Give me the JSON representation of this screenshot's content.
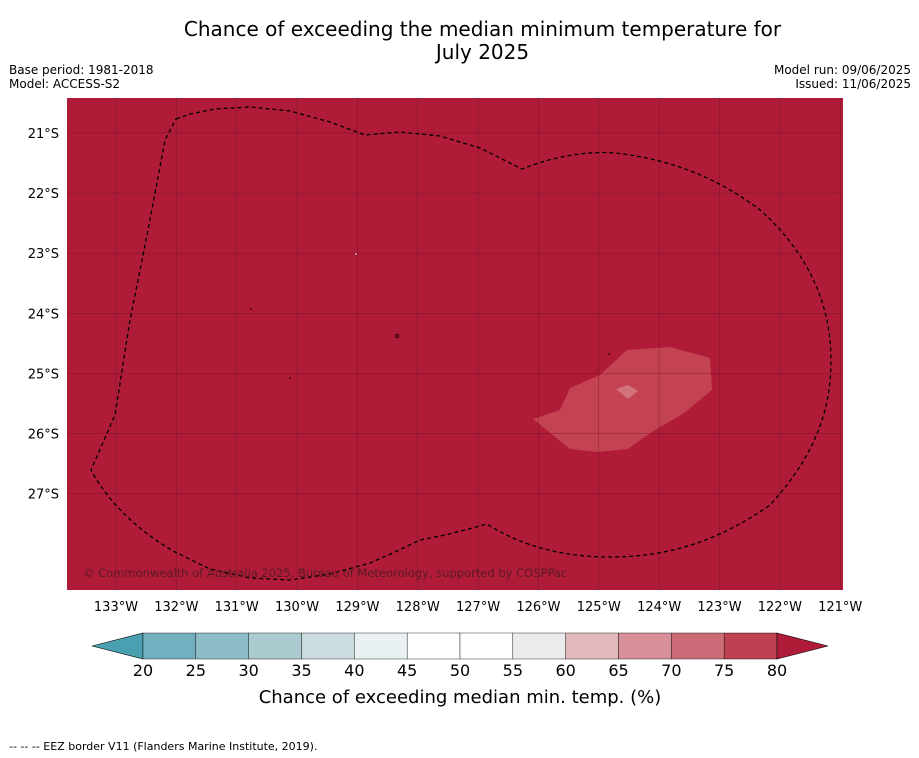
{
  "title": {
    "line1": "Chance of exceeding the median minimum temperature for",
    "line2": "July 2025"
  },
  "meta": {
    "base_period": "Base period: 1981-2018",
    "model": "Model: ACCESS-S2",
    "model_run": "Model run: 09/06/2025",
    "issued": "Issued: 11/06/2025"
  },
  "map": {
    "background_color": "#b01c38",
    "patch_outer_color": "#c44352",
    "patch_inner_color": "#d2727d",
    "lon_ticks": [
      "133°W",
      "132°W",
      "131°W",
      "130°W",
      "129°W",
      "128°W",
      "127°W",
      "126°W",
      "125°W",
      "124°W",
      "123°W",
      "122°W",
      "121°W"
    ],
    "lat_ticks": [
      "21°S",
      "22°S",
      "23°S",
      "24°S",
      "25°S",
      "26°S",
      "27°S"
    ],
    "copyright": "© Commonwealth of Australia 2025, Bureau of Meteorology, supported by COSPPac"
  },
  "colorbar": {
    "ticks": [
      "20",
      "25",
      "30",
      "35",
      "40",
      "45",
      "50",
      "55",
      "60",
      "65",
      "70",
      "75",
      "80"
    ],
    "colors": [
      "#72afbf",
      "#8ebcc8",
      "#abcbd1",
      "#cadce0",
      "#eaf1f3",
      "#ffffff",
      "#ffffff",
      "#ebebeb",
      "#e2b8bd",
      "#d7909a",
      "#cb6b77",
      "#be4152"
    ],
    "low_extend_color": "#4aa0b0",
    "high_extend_color": "#b01c38",
    "label": "Chance of exceeding median min. temp. (%)"
  },
  "footer": {
    "legend": "-- -- -- EEZ border V11 (Flanders Marine Institute, 2019)."
  }
}
